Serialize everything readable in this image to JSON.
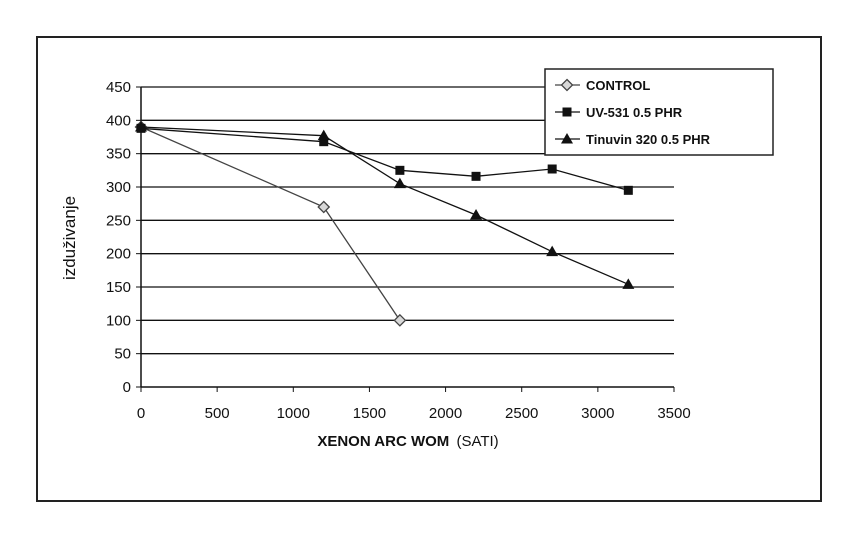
{
  "chart_data": {
    "type": "line",
    "title": "",
    "xlabel": "XENON ARC WOM",
    "xlabel_unit": "(SATI)",
    "ylabel": "izduživanje",
    "xlim": [
      0,
      3500
    ],
    "ylim": [
      0,
      450
    ],
    "x_ticks": [
      "0",
      "500",
      "1000",
      "1500",
      "2000",
      "2500",
      "3000",
      "3500"
    ],
    "y_ticks": [
      "0",
      "50",
      "100",
      "150",
      "200",
      "250",
      "300",
      "350",
      "400",
      "450"
    ],
    "grid": "horizontal",
    "legend_position": "top-right",
    "series": [
      {
        "name": "CONTROL",
        "marker": "diamond-open",
        "color": "#444444",
        "x": [
          0,
          1200,
          1700
        ],
        "y": [
          390,
          270,
          100
        ]
      },
      {
        "name": "UV-531 0.5 PHR",
        "marker": "square",
        "color": "#111111",
        "x": [
          0,
          1200,
          1700,
          2200,
          2700,
          3200
        ],
        "y": [
          388,
          368,
          325,
          316,
          327,
          295
        ]
      },
      {
        "name": "Tinuvin 320 0.5 PHR",
        "marker": "triangle",
        "color": "#111111",
        "x": [
          0,
          1200,
          1700,
          2200,
          2700,
          3200
        ],
        "y": [
          390,
          377,
          305,
          258,
          203,
          154
        ]
      }
    ]
  }
}
